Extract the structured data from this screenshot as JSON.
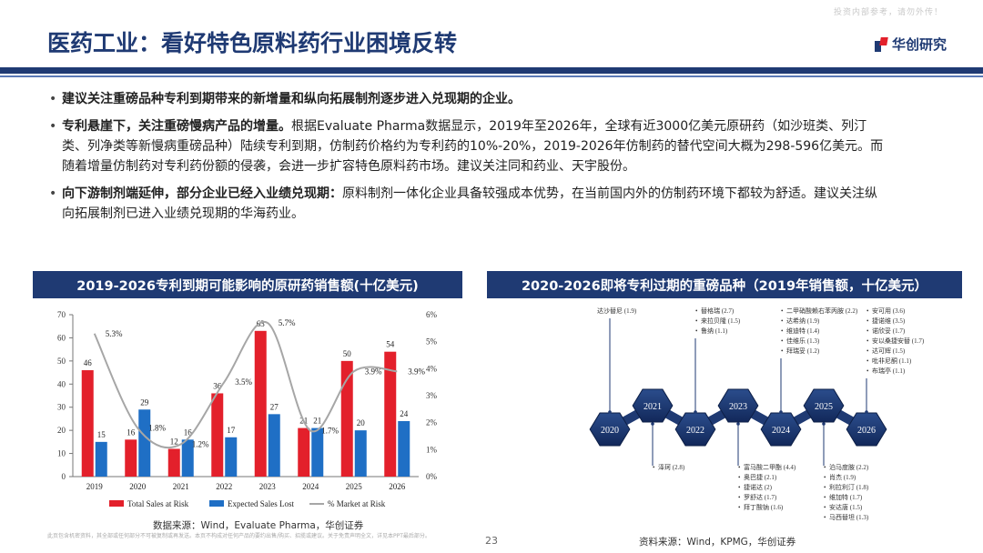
{
  "watermark": "投资内部参考，请勿外传！",
  "title": "医药工业：看好特色原料药行业困境反转",
  "logo_text": "华创研究",
  "bullets": [
    {
      "bold": "建议关注重磅品种专利到期带来的新增量和纵向拓展制剂逐步进入兑现期的企业。",
      "text": ""
    },
    {
      "bold": "专利悬崖下，关注重磅慢病产品的增量。",
      "text": "根据Evaluate Pharma数据显示，2019年至2026年，全球有近3000亿美元原研药（如沙班类、列汀类、列净类等新慢病重磅品种）陆续专利到期，仿制药价格约为专利药的10%-20%，2019-2026年仿制药的替代空间大概为298-596亿美元。而随着增量仿制药对专利药份额的侵袭，会进一步扩容特色原料药市场。建议关注同和药业、天宇股份。"
    },
    {
      "bold": "向下游制剂端延伸，部分企业已经入业绩兑现期：",
      "text": "原料制剂一体化企业具备较强成本优势，在当前国内外的仿制药环境下都较为舒适。建议关注纵向拓展制剂已进入业绩兑现期的华海药业。"
    }
  ],
  "left_panel_title": "2019-2026专利到期可能影响的原研药销售额(十亿美元)",
  "right_panel_title": "2020-2026即将专利过期的重磅品种（2019年销售额，十亿美元）",
  "left_source": "数据来源：Wind，Evaluate Pharma，华创证券",
  "right_source": "资料来源：Wind，KPMG，华创证券",
  "disclaimer": "此页包含机密资料，其全部或任何部分不可被复制或再发送。本页不构成对任何产品的要约出售/购买、招揽或建议。关于免责声明全文，详见本PPT最后部分。",
  "page_number": "23",
  "chart_data": [
    {
      "type": "bar",
      "categories": [
        "2019",
        "2020",
        "2021",
        "2022",
        "2023",
        "2024",
        "2025",
        "2026"
      ],
      "ylim": [
        0,
        70
      ],
      "yticks": [
        "0",
        "10",
        "20",
        "30",
        "40",
        "50",
        "60",
        "70"
      ],
      "y2lim": [
        0,
        6
      ],
      "y2ticks": [
        "0%",
        "1%",
        "2%",
        "3%",
        "4%",
        "5%",
        "6%"
      ],
      "series": [
        {
          "name": "Total Sales at Risk",
          "color": "#e3202b",
          "values": [
            46,
            16,
            12,
            36,
            63,
            21,
            50,
            54
          ]
        },
        {
          "name": "Expected Sales Lost",
          "color": "#1f6fc5",
          "values": [
            15,
            29,
            16,
            17,
            27,
            21,
            20,
            24
          ]
        },
        {
          "name": "% Market at Risk",
          "color": "#a6a6a6",
          "axis": "right",
          "values": [
            5.3,
            1.8,
            1.2,
            3.5,
            5.7,
            1.7,
            3.9,
            3.9
          ],
          "labels": [
            "5.3%",
            "1.8%",
            "1.2%",
            "3.5%",
            "5.7%",
            "1.7%",
            "3.9%",
            "3.9%"
          ]
        }
      ]
    },
    {
      "type": "timeline",
      "years": [
        "2020",
        "2021",
        "2022",
        "2023",
        "2024",
        "2025",
        "2026"
      ],
      "above": [
        {
          "year": "2020",
          "items": [
            "达沙替尼 (1.9)"
          ]
        },
        {
          "year": "2022",
          "items": [
            "替格瑞 (2.7)",
            "来拉贝隆 (1.5)",
            "鲁纳 (1.1)"
          ]
        },
        {
          "year": "2024",
          "items": [
            "二甲硝酸赖右苯丙胺 (2.2)",
            "达希纳 (1.9)",
            "维迪特 (1.4)",
            "佳维乐 (1.3)",
            "拜瑞妥 (1.2)"
          ]
        },
        {
          "year": "2026",
          "items": [
            "安可用 (3.6)",
            "捷诺维 (3.5)",
            "诺欣妥 (1.7)",
            "安以桑捷安替 (1.7)",
            "达可辉 (1.5)",
            "吡非尼酮 (1.1)",
            "布瑞亭 (1.1)"
          ]
        }
      ],
      "below": [
        {
          "year": "2021",
          "items": [
            "泽珂 (2.8)"
          ]
        },
        {
          "year": "2023",
          "items": [
            "富马酸二甲酯 (4.4)",
            "奥巴捷 (2.1)",
            "捷诺达 (2)",
            "罗舒达 (1.7)",
            "拜丁酸钠 (1.6)"
          ]
        },
        {
          "year": "2025",
          "items": [
            "泊马度胺 (2.2)",
            "肖杰 (1.9)",
            "利拉利汀 (1.8)",
            "维加特 (1.7)",
            "安达唐 (1.5)",
            "马西替坦 (1.3)"
          ]
        }
      ]
    }
  ]
}
